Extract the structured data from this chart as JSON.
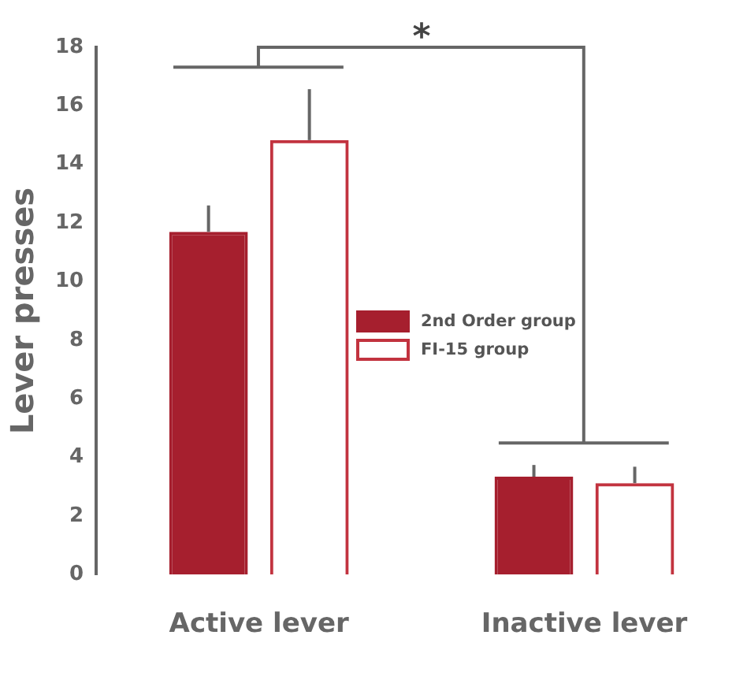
{
  "chart_data": {
    "type": "bar",
    "ylabel": "Lever presses",
    "categories": [
      "Active lever",
      "Inactive lever"
    ],
    "series": [
      {
        "name": "2nd Order group",
        "color": "#a61f2e",
        "values": [
          11.7,
          3.34
        ],
        "errors": [
          [
            11.7,
            12.6
          ],
          [
            3.34,
            3.74
          ]
        ]
      },
      {
        "name": "FI-15 group",
        "color": "#c2333f",
        "values": [
          14.83,
          3.12
        ],
        "errors": [
          [
            14.83,
            16.57
          ],
          [
            3.12,
            3.68
          ]
        ]
      }
    ],
    "ylim": [
      0,
      18
    ],
    "yticks": [
      0,
      2,
      4,
      6,
      8,
      10,
      12,
      14,
      16,
      18
    ],
    "grid": false,
    "legend": "center",
    "annotations": [
      "*"
    ]
  }
}
